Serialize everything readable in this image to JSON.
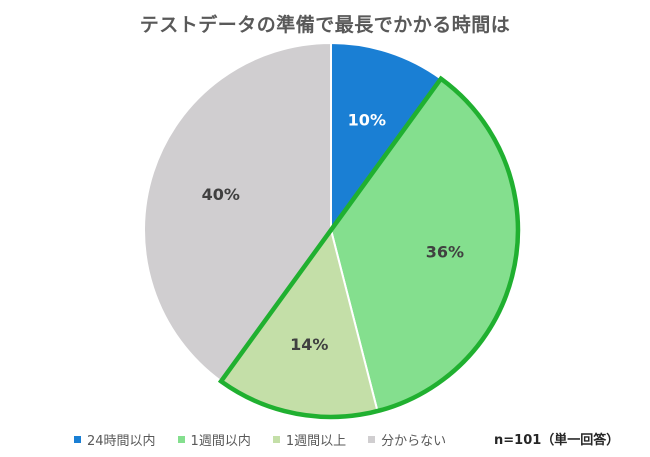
{
  "chart_data": {
    "type": "pie",
    "title": "テストデータの準備で最長でかかる時間は",
    "categories": [
      "24時間以内",
      "1週間以内",
      "1週間以上",
      "分からない"
    ],
    "values": [
      10,
      36,
      14,
      40
    ],
    "data_labels": [
      "10%",
      "36%",
      "14%",
      "40%"
    ],
    "colors": [
      "#1a7fd4",
      "#84df8e",
      "#c4dfa8",
      "#d0ced0"
    ],
    "label_colors": [
      "#ffffff",
      "#404040",
      "#404040",
      "#404040"
    ],
    "highlight_color": "#20b030",
    "highlight_indices": [
      1,
      2
    ],
    "legend_position": "bottom",
    "note": "n=101（単一回答）"
  }
}
